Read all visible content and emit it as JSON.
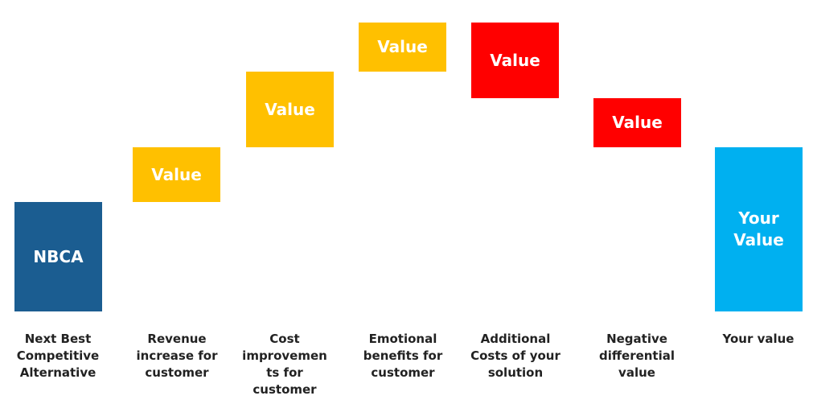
{
  "steps": [
    {
      "box": "NBCA",
      "caption": [
        "Next Best",
        "Competitive",
        "Alternative"
      ]
    },
    {
      "box": "Value",
      "caption": [
        "Revenue",
        "increase for",
        "customer"
      ]
    },
    {
      "box": "Value",
      "caption": [
        "Cost",
        "improvemen",
        "ts for",
        "customer"
      ]
    },
    {
      "box": "Value",
      "caption": [
        "Emotional",
        "benefits for",
        "customer"
      ]
    },
    {
      "box": "Value",
      "caption": [
        "Additional",
        "Costs of your",
        "solution"
      ]
    },
    {
      "box": "Value",
      "caption": [
        "Negative",
        "differential",
        "value"
      ]
    },
    {
      "box": [
        "Your",
        "Value"
      ],
      "caption": [
        "Your value"
      ]
    }
  ]
}
